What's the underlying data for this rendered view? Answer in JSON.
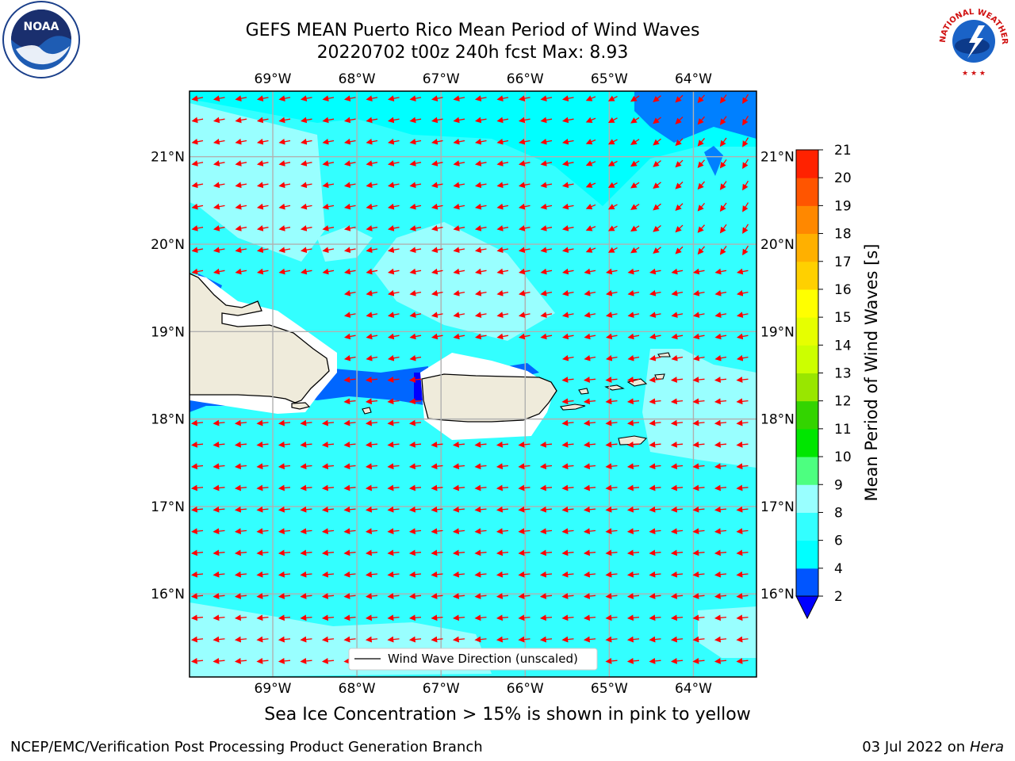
{
  "title": {
    "line1": "GEFS MEAN Puerto Rico Mean Period of Wind Waves",
    "line2": "20220702 t00z 240h fcst   Max: 8.93"
  },
  "map": {
    "lon_range": [
      -69.99,
      -63.25
    ],
    "lat_range": [
      15.05,
      21.75
    ],
    "lon_ticks": [
      {
        "value": -69,
        "label": "69°W"
      },
      {
        "value": -68,
        "label": "68°W"
      },
      {
        "value": -67,
        "label": "67°W"
      },
      {
        "value": -66,
        "label": "66°W"
      },
      {
        "value": -65,
        "label": "65°W"
      },
      {
        "value": -64,
        "label": "64°W"
      }
    ],
    "lat_ticks": [
      {
        "value": 21,
        "label": "21°N"
      },
      {
        "value": 20,
        "label": "20°N"
      },
      {
        "value": 19,
        "label": "19°N"
      },
      {
        "value": 18,
        "label": "18°N"
      },
      {
        "value": 17,
        "label": "17°N"
      },
      {
        "value": 16,
        "label": "16°N"
      }
    ],
    "grid": true,
    "ocean_color": "#33ffff",
    "land_color": "#efebdb",
    "arrow_color": "#ff0000",
    "legend": {
      "label": "Wind Wave Direction (unscaled)",
      "placement": "lower-center"
    }
  },
  "colorbar": {
    "label": "Mean Period of Wind Waves [s]",
    "ticks": [
      "2",
      "4",
      "6",
      "8",
      "9",
      "10",
      "11",
      "12",
      "13",
      "14",
      "15",
      "16",
      "17",
      "18",
      "19",
      "20",
      "21"
    ],
    "colors": [
      "#0055ff",
      "#00ffff",
      "#33ffff",
      "#99ffff",
      "#4dff80",
      "#00e600",
      "#33d400",
      "#99e600",
      "#ccff00",
      "#e6ff00",
      "#ffff00",
      "#ffd000",
      "#ffb000",
      "#ff8800",
      "#ff5500",
      "#ff2200"
    ],
    "under_color": "#0000ff"
  },
  "caption": "Sea Ice Concentration > 15% is shown in pink to yellow",
  "footer": {
    "left": "NCEP/EMC/Verification Post Processing Product Generation Branch",
    "right_prefix": "03 Jul 2022 on ",
    "right_machine": "Hera"
  },
  "logos": {
    "noaa": "NOAA",
    "nws_text": "NATIONAL WEATHER SERVICE"
  }
}
